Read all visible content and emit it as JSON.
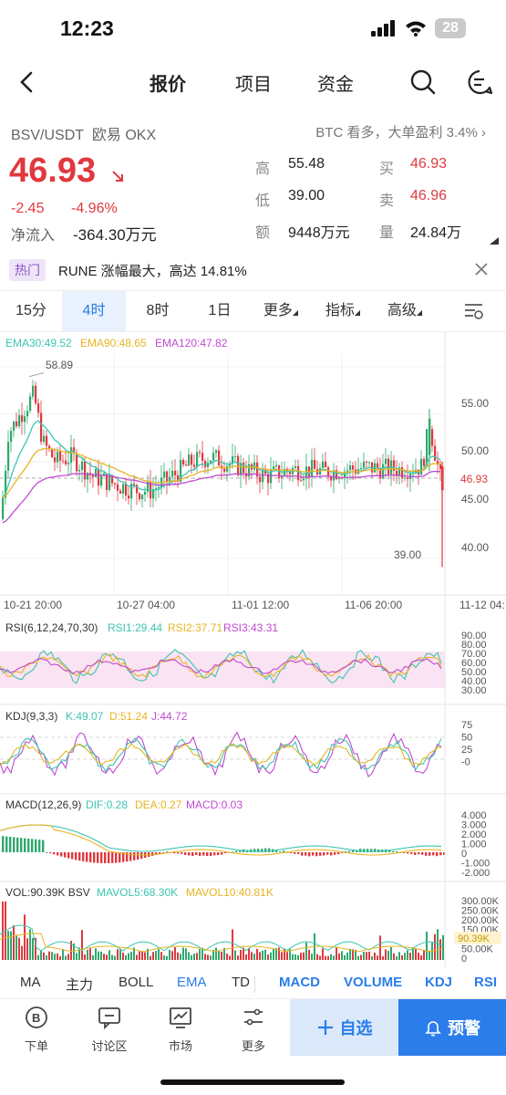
{
  "status": {
    "time": "12:23",
    "battery": "28"
  },
  "nav": {
    "tabs": [
      "报价",
      "项目",
      "资金"
    ]
  },
  "ticker": {
    "pair": "BSV/USDT",
    "exchange": "欧易 OKX",
    "promo": "BTC 看多，大单盈利 3.4% ›",
    "price": "46.93",
    "change": "-2.45",
    "change_pct": "-4.96%",
    "netflow_label": "净流入",
    "netflow_value": "-364.30万元",
    "stats": {
      "high_label": "高",
      "high": "55.48",
      "low_label": "低",
      "low": "39.00",
      "amount_label": "额",
      "amount": "9448万元",
      "buy_label": "买",
      "buy": "46.93",
      "sell_label": "卖",
      "sell": "46.96",
      "volume_label": "量",
      "volume": "24.84万"
    }
  },
  "hot": {
    "tag": "热门",
    "text": "RUNE 涨幅最大，高达 14.81%"
  },
  "timeframes": [
    "15分",
    "4时",
    "8时",
    "1日",
    "更多",
    "指标",
    "高级"
  ],
  "active_timeframe": "4时",
  "main_chart": {
    "legend": {
      "ema30": "EMA30:49.52",
      "ema90": "EMA90:48.65",
      "ema120": "EMA120:47.82"
    },
    "high_label": "58.89",
    "low_label": "39.00",
    "last_price": "46.93",
    "y_ticks": [
      "55.00",
      "50.00",
      "45.00",
      "40.00"
    ],
    "x_ticks": [
      "10-21 20:00",
      "10-27 04:00",
      "11-01 12:00",
      "11-06 20:00",
      "11-12 04:"
    ]
  },
  "rsi": {
    "legend": {
      "title": "RSI(6,12,24,70,30)",
      "rsi1": "RSI1:29.44",
      "rsi2": "RSI2:37.71",
      "rsi3": "RSI3:43.31"
    },
    "ticks": [
      "90.00",
      "80.00",
      "70.00",
      "60.00",
      "50.00",
      "40.00",
      "30.00"
    ]
  },
  "kdj": {
    "legend": {
      "title": "KDJ(9,3,3)",
      "k": "K:49.07",
      "d": "D:51.24",
      "j": "J:44.72"
    },
    "ticks": [
      "75",
      "50",
      "25",
      "-0"
    ]
  },
  "macd": {
    "legend": {
      "title": "MACD(12,26,9)",
      "dif": "DIF:0.28",
      "dea": "DEA:0.27",
      "macd": "MACD:0.03"
    },
    "ticks": [
      "4.000",
      "3.000",
      "2.000",
      "1.000",
      "0",
      "-1.000",
      "-2.000"
    ]
  },
  "vol": {
    "legend": {
      "title": "VOL:90.39K BSV",
      "ma5": "MAVOL5:68.30K",
      "ma10": "MAVOL10:40.81K"
    },
    "ticks": [
      "300.00K",
      "250.00K",
      "200.00K",
      "150.00K",
      "100.00K",
      "50.00K",
      "0"
    ],
    "last": "90.39K"
  },
  "indicators": [
    "MA",
    "主力",
    "BOLL",
    "EMA",
    "TD",
    "MACD",
    "VOLUME",
    "KDJ",
    "RSI"
  ],
  "bottom": {
    "items": [
      "下单",
      "讨论区",
      "市场",
      "更多"
    ],
    "favorite": "自选",
    "alert": "预警"
  },
  "colors": {
    "up": "#2ea86e",
    "down": "#e0383e",
    "accent": "#2b7de9",
    "ema30": "#3cc5b0",
    "ema90": "#e8b422",
    "ema120": "#c04ad1"
  },
  "icons": [
    "chevron-left-icon",
    "search-icon",
    "message-icon",
    "close-icon",
    "settings-icon",
    "order-icon",
    "chat-icon",
    "market-icon",
    "more-icon",
    "plus-icon",
    "bell-icon"
  ]
}
